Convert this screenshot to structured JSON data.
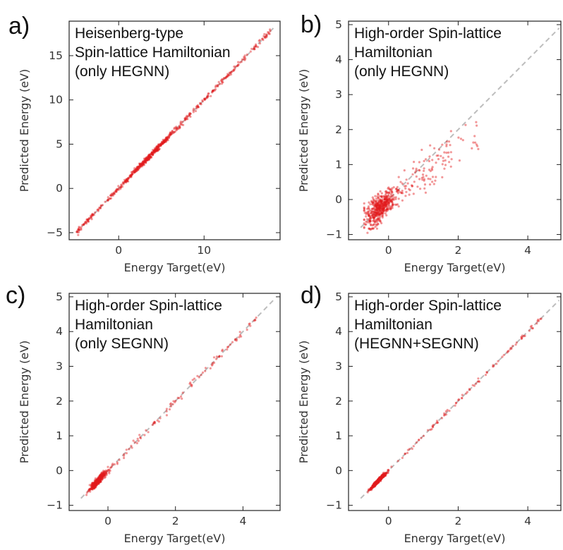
{
  "chart_data": [
    {
      "type": "scatter",
      "panel": "a)",
      "annotation": [
        "Heisenberg-type",
        "Spin-lattice Hamiltonian",
        "(only HEGNN)"
      ],
      "xlabel": "Energy Target(eV)",
      "ylabel": "Predicted Energy (eV)",
      "xlim": [
        -5.8,
        18.9
      ],
      "ylim": [
        -5.8,
        18.9
      ],
      "xticks": [
        0,
        10
      ],
      "yticks": [
        -5,
        0,
        5,
        10,
        15
      ],
      "diagonal": [
        -5,
        18.3
      ],
      "points": {
        "x_range": [
          -5,
          18
        ],
        "spread": 0.15,
        "count": 600,
        "cluster": [
          3,
          4
        ]
      },
      "color": "#e31a1c"
    },
    {
      "type": "scatter",
      "panel": "b)",
      "annotation": [
        "High-order Spin-lattice",
        "Hamiltonian",
        "(only HEGNN)"
      ],
      "xlabel": "Energy Target(eV)",
      "ylabel": "Predicted Energy (eV)",
      "xlim": [
        -1.15,
        4.95
      ],
      "ylim": [
        -1.15,
        5.1
      ],
      "xticks": [
        0,
        2,
        4
      ],
      "yticks": [
        -1,
        0,
        1,
        2,
        3,
        4,
        5
      ],
      "diagonal": [
        -0.8,
        4.9
      ],
      "points": {
        "center": [
          -0.25,
          -0.25
        ],
        "spread": 0.35,
        "count": 600
      },
      "color": "#e31a1c"
    },
    {
      "type": "scatter",
      "panel": "c)",
      "annotation": [
        "High-order Spin-lattice",
        "Hamiltonian",
        "(only SEGNN)"
      ],
      "xlabel": "Energy Target(eV)",
      "ylabel": "Predicted Energy (eV)",
      "xlim": [
        -1.15,
        5.1
      ],
      "ylim": [
        -1.15,
        5.1
      ],
      "xticks": [
        0,
        2,
        4
      ],
      "yticks": [
        -1,
        0,
        1,
        2,
        3,
        4,
        5
      ],
      "diagonal": [
        -0.8,
        4.95
      ],
      "points": {
        "center": [
          -0.3,
          -0.3
        ],
        "spread": 0.06,
        "count": 500
      },
      "color": "#e31a1c"
    },
    {
      "type": "scatter",
      "panel": "d)",
      "annotation": [
        "High-order Spin-lattice",
        "Hamiltonian",
        "(HEGNN+SEGNN)"
      ],
      "xlabel": "Energy Target(eV)",
      "ylabel": "Predicted Energy (eV)",
      "xlim": [
        -1.15,
        4.95
      ],
      "ylim": [
        -1.15,
        5.1
      ],
      "xticks": [
        0,
        2,
        4
      ],
      "yticks": [
        -1,
        0,
        1,
        2,
        3,
        4,
        5
      ],
      "diagonal": [
        -0.8,
        4.9
      ],
      "points": {
        "center": [
          -0.3,
          -0.3
        ],
        "spread": 0.03,
        "count": 500
      },
      "color": "#e31a1c"
    }
  ]
}
